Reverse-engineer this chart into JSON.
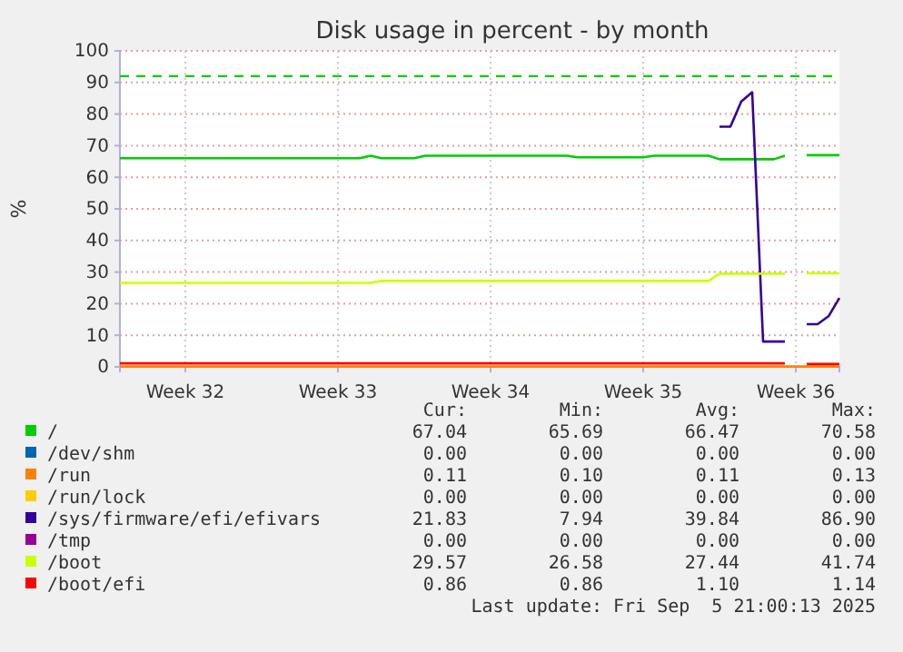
{
  "chart_data": {
    "type": "line",
    "title": "Disk usage in percent - by month",
    "ylabel": "%",
    "categories": [
      null,
      null,
      null,
      null,
      null,
      null,
      "Week 32",
      null,
      null,
      null,
      null,
      null,
      null,
      null,
      null,
      null,
      null,
      null,
      null,
      null,
      "Week 33",
      null,
      null,
      null,
      null,
      null,
      null,
      null,
      null,
      null,
      null,
      null,
      null,
      null,
      "Week 34",
      null,
      null,
      null,
      null,
      null,
      null,
      null,
      null,
      null,
      null,
      null,
      null,
      null,
      "Week 35",
      null,
      null,
      null,
      null,
      null,
      null,
      null,
      null,
      null,
      null,
      null,
      null,
      null,
      "Week 36",
      null,
      null,
      null,
      null
    ],
    "ylim": [
      0,
      100
    ],
    "yticks": [
      0,
      10,
      20,
      30,
      40,
      50,
      60,
      70,
      80,
      90,
      100
    ],
    "grid": true,
    "legend": "bottom",
    "line_style": "solid",
    "ref_lines": [
      {
        "axis": "y",
        "value": 92,
        "color": "#00cc00",
        "line_style": "dashed"
      }
    ],
    "series": [
      {
        "name": "/",
        "color": "#00cc00",
        "values": [
          66,
          66,
          66,
          66,
          66,
          66,
          66,
          66,
          66,
          66,
          66,
          66,
          66,
          66,
          66,
          66,
          66,
          66,
          66,
          66,
          66,
          66,
          66,
          66.8,
          66,
          66,
          66,
          66,
          66.8,
          66.8,
          66.8,
          66.8,
          66.8,
          66.8,
          66.8,
          66.8,
          66.8,
          66.8,
          66.8,
          66.8,
          66.8,
          66.8,
          66.3,
          66.3,
          66.3,
          66.3,
          66.3,
          66.3,
          66.3,
          66.8,
          66.8,
          66.8,
          66.8,
          66.8,
          66.8,
          65.7,
          65.7,
          65.7,
          65.7,
          65.7,
          65.7,
          66.8,
          null,
          67,
          67,
          67,
          67
        ]
      },
      {
        "name": "/dev/shm",
        "color": "#0066b3",
        "values": [
          null,
          null,
          null,
          null,
          null,
          null,
          null,
          null,
          null,
          null,
          null,
          null,
          null,
          null,
          null,
          null,
          null,
          null,
          null,
          null,
          null,
          null,
          null,
          null,
          null,
          null,
          null,
          null,
          null,
          null,
          null,
          null,
          null,
          null,
          null,
          null,
          null,
          null,
          null,
          null,
          null,
          null,
          null,
          null,
          null,
          null,
          null,
          null,
          null,
          null,
          null,
          null,
          null,
          null,
          null,
          null,
          null,
          null,
          null,
          null,
          null,
          null,
          null,
          null,
          null,
          null,
          null
        ]
      },
      {
        "name": "/run",
        "color": "#ff8000",
        "values": [
          0.1,
          0.1,
          0.1,
          0.1,
          0.1,
          0.1,
          0.1,
          0.1,
          0.1,
          0.1,
          0.1,
          0.1,
          0.1,
          0.1,
          0.1,
          0.1,
          0.1,
          0.1,
          0.1,
          0.1,
          0.1,
          0.1,
          0.1,
          0.1,
          0.1,
          0.1,
          0.1,
          0.1,
          0.1,
          0.1,
          0.1,
          0.1,
          0.1,
          0.1,
          0.1,
          0.1,
          0.1,
          0.1,
          0.1,
          0.1,
          0.1,
          0.1,
          0.1,
          0.1,
          0.1,
          0.1,
          0.1,
          0.1,
          0.1,
          0.1,
          0.1,
          0.1,
          0.1,
          0.1,
          0.1,
          0.1,
          0.1,
          0.1,
          0.1,
          0.1,
          0.1,
          0.1,
          0.1,
          0.1,
          0.1,
          0.1,
          0.1
        ]
      },
      {
        "name": "/run/lock",
        "color": "#ffcc00",
        "values": [
          null,
          null,
          null,
          null,
          null,
          null,
          null,
          null,
          null,
          null,
          null,
          null,
          null,
          null,
          null,
          null,
          null,
          null,
          null,
          null,
          null,
          null,
          null,
          null,
          null,
          null,
          null,
          null,
          null,
          null,
          null,
          null,
          null,
          null,
          null,
          null,
          null,
          null,
          null,
          null,
          null,
          null,
          null,
          null,
          null,
          null,
          null,
          null,
          null,
          null,
          null,
          null,
          null,
          null,
          null,
          null,
          null,
          null,
          null,
          null,
          null,
          null,
          null,
          null,
          null,
          null,
          null
        ]
      },
      {
        "name": "/sys/firmware/efi/efivars",
        "color": "#330099",
        "values": [
          null,
          null,
          null,
          null,
          null,
          null,
          null,
          null,
          null,
          null,
          null,
          null,
          null,
          null,
          null,
          null,
          null,
          null,
          null,
          null,
          null,
          null,
          null,
          null,
          null,
          null,
          null,
          null,
          null,
          null,
          null,
          null,
          null,
          null,
          null,
          null,
          null,
          null,
          null,
          null,
          null,
          null,
          null,
          null,
          null,
          null,
          null,
          null,
          null,
          null,
          null,
          null,
          null,
          null,
          null,
          76,
          76,
          84,
          86.9,
          8,
          8,
          8,
          null,
          13.5,
          13.5,
          16,
          21.8
        ]
      },
      {
        "name": "/tmp",
        "color": "#990099",
        "values": [
          null,
          null,
          null,
          null,
          null,
          null,
          null,
          null,
          null,
          null,
          null,
          null,
          null,
          null,
          null,
          null,
          null,
          null,
          null,
          null,
          null,
          null,
          null,
          null,
          null,
          null,
          null,
          null,
          null,
          null,
          null,
          null,
          null,
          null,
          null,
          null,
          null,
          null,
          null,
          null,
          null,
          null,
          null,
          null,
          null,
          null,
          null,
          null,
          null,
          null,
          null,
          null,
          null,
          null,
          null,
          null,
          null,
          null,
          null,
          null,
          null,
          null,
          null,
          null,
          null,
          null,
          null
        ]
      },
      {
        "name": "/boot",
        "color": "#ccff00",
        "values": [
          26.6,
          26.6,
          26.6,
          26.6,
          26.6,
          26.6,
          26.6,
          26.6,
          26.6,
          26.6,
          26.6,
          26.6,
          26.6,
          26.6,
          26.6,
          26.6,
          26.6,
          26.6,
          26.6,
          26.6,
          26.6,
          26.6,
          26.6,
          26.6,
          27.2,
          27.2,
          27.2,
          27.2,
          27.2,
          27.2,
          27.2,
          27.2,
          27.2,
          27.2,
          27.2,
          27.2,
          27.2,
          27.2,
          27.2,
          27.2,
          27.2,
          27.2,
          27.2,
          27.2,
          27.2,
          27.2,
          27.2,
          27.2,
          27.2,
          27.2,
          27.2,
          27.2,
          27.2,
          27.2,
          27.2,
          29.5,
          29.5,
          29.5,
          29.5,
          29.5,
          29.5,
          29.5,
          null,
          29.6,
          29.6,
          29.6,
          29.6
        ]
      },
      {
        "name": "/boot/efi",
        "color": "#ff0000",
        "values": [
          1.1,
          1.1,
          1.1,
          1.1,
          1.1,
          1.1,
          1.1,
          1.1,
          1.1,
          1.1,
          1.1,
          1.1,
          1.1,
          1.1,
          1.1,
          1.1,
          1.1,
          1.1,
          1.1,
          1.1,
          1.1,
          1.1,
          1.1,
          1.1,
          1.1,
          1.1,
          1.1,
          1.1,
          1.1,
          1.1,
          1.1,
          1.1,
          1.1,
          1.1,
          1.1,
          1.1,
          1.1,
          1.1,
          1.1,
          1.1,
          1.1,
          1.1,
          1.1,
          1.1,
          1.1,
          1.1,
          1.1,
          1.1,
          1.1,
          1.1,
          1.1,
          1.1,
          1.1,
          1.1,
          1.1,
          1.1,
          1.1,
          1.1,
          1.1,
          1.1,
          1.1,
          1.1,
          null,
          0.9,
          0.9,
          0.9,
          0.9
        ]
      }
    ],
    "annotations": [
      "Cur:",
      "Min:",
      "Avg:",
      "Max:",
      "67.04",
      "65.69",
      "66.47",
      "70.58",
      "0.00",
      "0.00",
      "0.00",
      "0.00",
      "0.11",
      "0.10",
      "0.11",
      "0.13",
      "0.00",
      "0.00",
      "0.00",
      "0.00",
      "21.83",
      "7.94",
      "39.84",
      "86.90",
      "0.00",
      "0.00",
      "0.00",
      "0.00",
      "29.57",
      "26.58",
      "27.44",
      "41.74",
      "0.86",
      "0.86",
      "1.10",
      "1.14",
      "Last update: Fri Sep  5 21:00:13 2025"
    ]
  }
}
